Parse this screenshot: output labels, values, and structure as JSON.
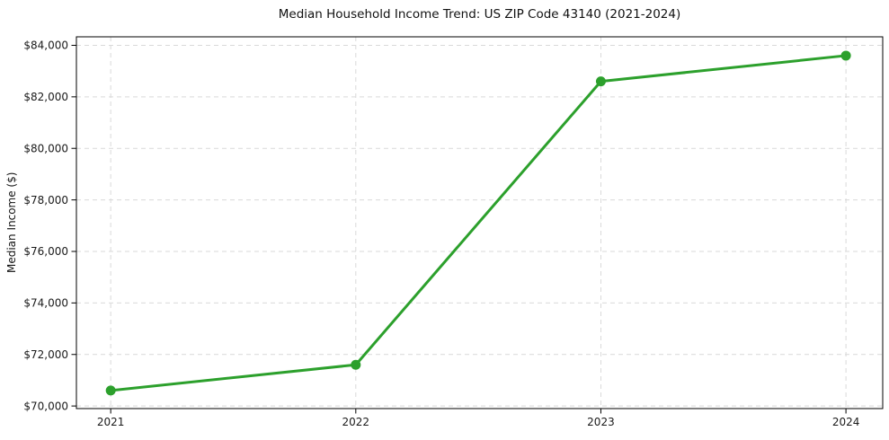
{
  "chart_data": {
    "type": "line",
    "title": "Median Household Income Trend: US ZIP Code 43140 (2021-2024)",
    "xlabel": "",
    "ylabel": "Median Income ($)",
    "x": [
      2021,
      2022,
      2023,
      2024
    ],
    "x_tick_labels": [
      "2021",
      "2022",
      "2023",
      "2024"
    ],
    "values": [
      70600,
      71600,
      82600,
      83600
    ],
    "y_ticks": [
      70000,
      72000,
      74000,
      76000,
      78000,
      80000,
      82000,
      84000
    ],
    "y_tick_labels": [
      "$70,000",
      "$72,000",
      "$74,000",
      "$76,000",
      "$78,000",
      "$80,000",
      "$82,000",
      "$84,000"
    ],
    "ylim": [
      69900,
      84330
    ],
    "xlim": [
      2020.86,
      2024.15
    ],
    "grid": true,
    "grid_style": "dashed",
    "legend": false,
    "marker": "circle",
    "colors": {
      "line": "#2ca02c",
      "marker": "#2ca02c",
      "grid": "#d9d9d9",
      "spine": "#000000",
      "text": "#1a1a1a",
      "background": "#ffffff"
    }
  }
}
